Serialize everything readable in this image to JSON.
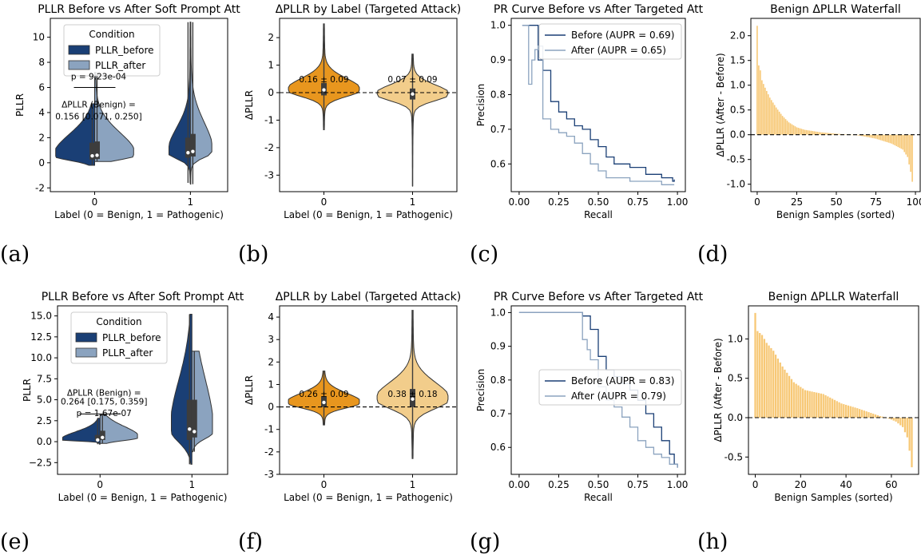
{
  "colors": {
    "before": "#1a3f75",
    "after": "#8ba3bf",
    "orange_dark": "#e8961e",
    "orange_light": "#f2cd8b",
    "waterfall": "#f7c876"
  },
  "chart_data": [
    {
      "id": "a",
      "panel_label": "(a)",
      "type": "violin",
      "title": "PLLR Before vs After Soft Prompt Att",
      "xlabel": "Label (0 = Benign, 1 = Pathogenic)",
      "ylabel": "PLLR",
      "categories": [
        "0",
        "1"
      ],
      "yticks": [
        -2,
        0,
        2,
        4,
        6,
        8,
        10
      ],
      "ylim": [
        -2.3,
        11.5
      ],
      "series": [
        {
          "name": "PLLR_before",
          "medians": [
            0.55,
            0.8
          ],
          "q1": [
            0.25,
            0.4
          ],
          "q3": [
            1.6,
            2.0
          ],
          "mins": [
            -0.2,
            -1.6
          ],
          "maxs": [
            4.7,
            11.2
          ]
        },
        {
          "name": "PLLR_after",
          "medians": [
            0.6,
            0.9
          ],
          "q1": [
            0.3,
            0.5
          ],
          "q3": [
            1.7,
            2.3
          ],
          "mins": [
            0.1,
            -1.7
          ],
          "maxs": [
            7.2,
            11.2
          ]
        }
      ],
      "legend": {
        "title": "Condition",
        "entries": [
          "PLLR_before",
          "PLLR_after"
        ],
        "position": "upper-left"
      },
      "annotations": [
        "p = 9.23e-04",
        "ΔPLLR (Benign) =",
        "0.156 [0.071, 0.250]"
      ]
    },
    {
      "id": "b",
      "panel_label": "(b)",
      "type": "violin",
      "title": "ΔPLLR by Label (Targeted Attack)",
      "xlabel": "Label (0 = Benign, 1 = Pathogenic)",
      "ylabel": "ΔPLLR",
      "categories": [
        "0",
        "1"
      ],
      "yticks": [
        -3,
        -2,
        -1,
        0,
        1,
        2
      ],
      "ylim": [
        -3.6,
        2.7
      ],
      "values": {
        "medians": [
          0.1,
          -0.05
        ],
        "q1": [
          -0.1,
          -0.25
        ],
        "q3": [
          0.35,
          0.15
        ],
        "mins": [
          -1.35,
          -3.4
        ],
        "maxs": [
          2.5,
          1.4
        ]
      },
      "annotations": [
        "0.16 ± 0.09",
        "0.07 ± 0.09"
      ],
      "reference_line": 0
    },
    {
      "id": "c",
      "panel_label": "(c)",
      "type": "line",
      "title": "PR Curve Before vs After Targeted Att",
      "xlabel": "Recall",
      "ylabel": "Precision",
      "xticks": [
        "0.00",
        "0.25",
        "0.50",
        "0.75",
        "1.00"
      ],
      "yticks": [
        "0.6",
        "0.7",
        "0.8",
        "0.9",
        "1.0"
      ],
      "xlim": [
        -0.05,
        1.05
      ],
      "ylim": [
        0.52,
        1.02
      ],
      "series": [
        {
          "name": "Before (AUPR = 0.69)",
          "x": [
            0.02,
            0.1,
            0.12,
            0.15,
            0.2,
            0.25,
            0.3,
            0.35,
            0.4,
            0.45,
            0.5,
            0.55,
            0.6,
            0.7,
            0.8,
            0.9,
            0.97,
            0.98
          ],
          "y": [
            1.0,
            1.0,
            0.9,
            0.87,
            0.78,
            0.75,
            0.73,
            0.71,
            0.7,
            0.67,
            0.65,
            0.62,
            0.6,
            0.59,
            0.57,
            0.56,
            0.55,
            0.555
          ]
        },
        {
          "name": "After (AUPR = 0.65)",
          "x": [
            0.02,
            0.04,
            0.06,
            0.08,
            0.1,
            0.12,
            0.15,
            0.2,
            0.25,
            0.3,
            0.35,
            0.4,
            0.45,
            0.5,
            0.55,
            0.6,
            0.7,
            0.8,
            0.9,
            0.98
          ],
          "y": [
            1.0,
            1.0,
            0.83,
            0.9,
            0.93,
            0.94,
            0.73,
            0.7,
            0.69,
            0.68,
            0.66,
            0.63,
            0.6,
            0.58,
            0.56,
            0.56,
            0.55,
            0.55,
            0.54,
            0.54
          ]
        }
      ],
      "legend": {
        "position": "upper-right"
      }
    },
    {
      "id": "d",
      "panel_label": "(d)",
      "type": "bar",
      "title": "Benign ΔPLLR Waterfall",
      "xlabel": "Benign Samples (sorted)",
      "ylabel": "ΔPLLR (After - Before)",
      "xticks": [
        0,
        25,
        50,
        75,
        100
      ],
      "yticks": [
        -1.0,
        -0.5,
        0.0,
        0.5,
        1.0,
        1.5,
        2.0
      ],
      "xlim": [
        -4,
        103
      ],
      "ylim": [
        -1.15,
        2.35
      ],
      "n": 99,
      "anchors": [
        [
          0,
          2.2
        ],
        [
          1,
          1.4
        ],
        [
          2,
          1.3
        ],
        [
          3,
          1.1
        ],
        [
          5,
          0.95
        ],
        [
          8,
          0.75
        ],
        [
          12,
          0.55
        ],
        [
          16,
          0.38
        ],
        [
          20,
          0.25
        ],
        [
          25,
          0.15
        ],
        [
          30,
          0.1
        ],
        [
          40,
          0.05
        ],
        [
          50,
          0.02
        ],
        [
          60,
          0.0
        ],
        [
          65,
          -0.02
        ],
        [
          75,
          -0.08
        ],
        [
          85,
          -0.18
        ],
        [
          92,
          -0.3
        ],
        [
          95,
          -0.45
        ],
        [
          97,
          -0.75
        ],
        [
          98,
          -0.95
        ]
      ],
      "reference_line": 0
    },
    {
      "id": "e",
      "panel_label": "(e)",
      "type": "violin",
      "title": "PLLR Before vs After Soft Prompt Att",
      "xlabel": "Label (0 = Benign, 1 = Pathogenic)",
      "ylabel": "PLLR",
      "categories": [
        "0",
        "1"
      ],
      "yticks": [
        "−2.5",
        "0.0",
        "2.5",
        "5.0",
        "7.5",
        "10.0",
        "12.5",
        "15.0"
      ],
      "ylim": [
        -3.9,
        16.2
      ],
      "series": [
        {
          "name": "PLLR_before",
          "medians": [
            0.2,
            1.5
          ],
          "q1": [
            0.1,
            0.2
          ],
          "q3": [
            0.8,
            5.0
          ],
          "mins": [
            -0.3,
            -2.7
          ],
          "maxs": [
            2.8,
            15.2
          ]
        },
        {
          "name": "PLLR_after",
          "medians": [
            0.5,
            1.2
          ],
          "q1": [
            0.2,
            0.5
          ],
          "q3": [
            1.3,
            5.0
          ],
          "mins": [
            -0.2,
            -1.2
          ],
          "maxs": [
            3.2,
            10.8
          ]
        }
      ],
      "legend": {
        "title": "Condition",
        "entries": [
          "PLLR_before",
          "PLLR_after"
        ],
        "position": "upper-left"
      },
      "annotations": [
        "ΔPLLR (Benign) =",
        "0.264 [0.175, 0.359]",
        "p = 1.67e-07"
      ]
    },
    {
      "id": "f",
      "panel_label": "(f)",
      "type": "violin",
      "title": "ΔPLLR by Label (Targeted Attack)",
      "xlabel": "Label (0 = Benign, 1 = Pathogenic)",
      "ylabel": "ΔPLLR",
      "categories": [
        "0",
        "1"
      ],
      "yticks": [
        -3,
        -2,
        -1,
        0,
        1,
        2,
        3,
        4
      ],
      "ylim": [
        -3.0,
        4.5
      ],
      "values": {
        "medians": [
          0.2,
          0.35
        ],
        "q1": [
          0.0,
          0.0
        ],
        "q3": [
          0.45,
          0.8
        ],
        "mins": [
          -0.8,
          -2.3
        ],
        "maxs": [
          1.6,
          4.3
        ]
      },
      "annotations": [
        "0.26 ± 0.09",
        "0.38 ± 0.18"
      ],
      "reference_line": 0
    },
    {
      "id": "g",
      "panel_label": "(g)",
      "type": "line",
      "title": "PR Curve Before vs After Targeted Att",
      "xlabel": "Recall",
      "ylabel": "Precision",
      "xticks": [
        "0.00",
        "0.25",
        "0.50",
        "0.75",
        "1.00"
      ],
      "yticks": [
        "0.6",
        "0.7",
        "0.8",
        "0.9",
        "1.0"
      ],
      "xlim": [
        -0.05,
        1.05
      ],
      "ylim": [
        0.52,
        1.02
      ],
      "series": [
        {
          "name": "Before (AUPR = 0.83)",
          "x": [
            0.0,
            0.3,
            0.35,
            0.4,
            0.45,
            0.5,
            0.55,
            0.6,
            0.65,
            0.7,
            0.75,
            0.8,
            0.85,
            0.9,
            0.95,
            0.98,
            1.0
          ],
          "y": [
            1.0,
            1.0,
            1.0,
            0.99,
            0.95,
            0.87,
            0.83,
            0.81,
            0.79,
            0.77,
            0.74,
            0.7,
            0.66,
            0.62,
            0.58,
            0.55,
            0.54
          ]
        },
        {
          "name": "After (AUPR = 0.79)",
          "x": [
            0.0,
            0.3,
            0.38,
            0.4,
            0.43,
            0.45,
            0.5,
            0.55,
            0.6,
            0.65,
            0.7,
            0.75,
            0.8,
            0.85,
            0.9,
            0.95,
            1.0
          ],
          "y": [
            1.0,
            1.0,
            1.0,
            0.92,
            0.89,
            0.86,
            0.78,
            0.74,
            0.72,
            0.69,
            0.66,
            0.62,
            0.6,
            0.58,
            0.57,
            0.55,
            0.54
          ]
        }
      ],
      "legend": {
        "position": "center-right"
      }
    },
    {
      "id": "h",
      "panel_label": "(h)",
      "type": "bar",
      "title": "Benign ΔPLLR Waterfall",
      "xlabel": "Benign Samples (sorted)",
      "ylabel": "ΔPLLR (After - Before)",
      "xticks": [
        0,
        20,
        40,
        60
      ],
      "yticks": [
        -0.5,
        0.0,
        0.5,
        1.0
      ],
      "xlim": [
        -3,
        72
      ],
      "ylim": [
        -0.72,
        1.42
      ],
      "n": 70,
      "anchors": [
        [
          0,
          1.33
        ],
        [
          1,
          1.1
        ],
        [
          3,
          1.05
        ],
        [
          5,
          0.95
        ],
        [
          8,
          0.85
        ],
        [
          12,
          0.65
        ],
        [
          17,
          0.45
        ],
        [
          22,
          0.35
        ],
        [
          30,
          0.3
        ],
        [
          38,
          0.18
        ],
        [
          45,
          0.12
        ],
        [
          50,
          0.07
        ],
        [
          55,
          0.02
        ],
        [
          58,
          0.0
        ],
        [
          62,
          -0.05
        ],
        [
          65,
          -0.12
        ],
        [
          67,
          -0.25
        ],
        [
          68,
          -0.42
        ],
        [
          69,
          -0.63
        ]
      ],
      "reference_line": 0
    }
  ]
}
